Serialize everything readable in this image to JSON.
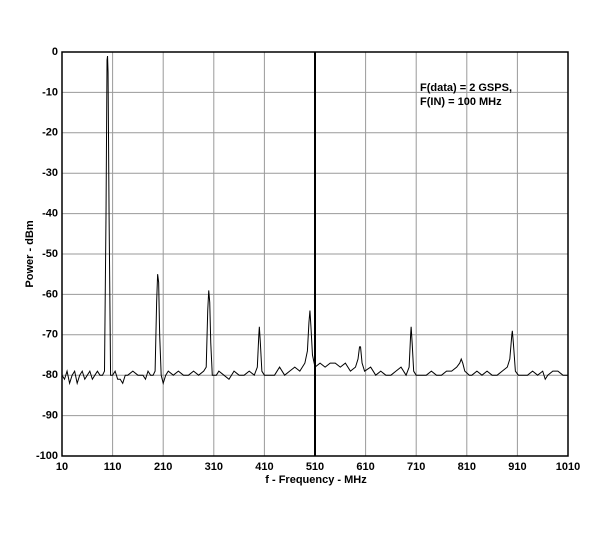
{
  "chart_data": {
    "type": "line",
    "xlabel": "f - Frequency - MHz",
    "ylabel": "Power - dBm",
    "annotations": [
      "F(data) = 2 GSPS,",
      "F(IN) = 100 MHz"
    ],
    "color": "#000000",
    "grid": true,
    "xlim": [
      10,
      1010
    ],
    "ylim": [
      -100,
      0
    ],
    "xticks": [
      10,
      110,
      210,
      310,
      410,
      510,
      610,
      710,
      810,
      910,
      1010
    ],
    "yticks": [
      0,
      -10,
      -20,
      -30,
      -40,
      -50,
      -60,
      -70,
      -80,
      -90,
      -100
    ],
    "x": [
      10,
      15,
      20,
      25,
      30,
      35,
      40,
      45,
      50,
      55,
      60,
      65,
      70,
      75,
      80,
      85,
      90,
      94,
      97,
      99,
      100,
      101,
      103,
      106,
      110,
      115,
      120,
      125,
      130,
      135,
      140,
      150,
      160,
      170,
      175,
      180,
      185,
      190,
      194,
      197,
      199,
      201,
      203,
      206,
      210,
      215,
      220,
      230,
      240,
      250,
      260,
      270,
      280,
      290,
      295,
      298,
      300,
      302,
      304,
      307,
      315,
      320,
      330,
      340,
      350,
      360,
      370,
      380,
      390,
      396,
      399,
      400,
      402,
      405,
      410,
      420,
      430,
      440,
      450,
      460,
      470,
      480,
      490,
      495,
      498,
      500,
      502,
      505,
      510,
      520,
      530,
      540,
      550,
      560,
      570,
      580,
      590,
      595,
      598,
      600,
      603,
      608,
      620,
      630,
      640,
      650,
      660,
      670,
      680,
      690,
      696,
      699,
      700,
      702,
      705,
      710,
      720,
      730,
      740,
      750,
      760,
      770,
      780,
      790,
      796,
      799,
      802,
      806,
      815,
      820,
      830,
      840,
      850,
      860,
      870,
      880,
      890,
      895,
      899,
      900,
      902,
      906,
      912,
      920,
      930,
      940,
      950,
      960,
      965,
      970,
      980,
      990,
      1000,
      1010
    ],
    "values": [
      -80,
      -81,
      -79,
      -82,
      -80,
      -79,
      -82,
      -80,
      -79,
      -81,
      -80,
      -79,
      -81,
      -80,
      -79,
      -80,
      -80,
      -79,
      -40,
      -2,
      -1,
      -5,
      -40,
      -80,
      -80,
      -79,
      -81,
      -81,
      -82,
      -80,
      -80,
      -79,
      -80,
      -80,
      -81,
      -79,
      -80,
      -80,
      -79,
      -62,
      -55,
      -57,
      -70,
      -80,
      -82,
      -80,
      -79,
      -80,
      -79,
      -80,
      -80,
      -79,
      -80,
      -79,
      -78,
      -64,
      -59,
      -62,
      -72,
      -80,
      -80,
      -79,
      -80,
      -81,
      -79,
      -80,
      -80,
      -79,
      -80,
      -78,
      -70,
      -68,
      -72,
      -79,
      -80,
      -80,
      -80,
      -78,
      -80,
      -79,
      -78,
      -79,
      -77,
      -74,
      -67,
      -64,
      -68,
      -75,
      -78,
      -77,
      -78,
      -77,
      -77,
      -78,
      -77,
      -79,
      -78,
      -76,
      -73,
      -73,
      -77,
      -79,
      -78,
      -80,
      -79,
      -80,
      -80,
      -79,
      -78,
      -80,
      -78,
      -70,
      -68,
      -72,
      -79,
      -80,
      -80,
      -80,
      -79,
      -80,
      -80,
      -79,
      -79,
      -78,
      -77,
      -76,
      -77,
      -79,
      -80,
      -80,
      -79,
      -80,
      -79,
      -80,
      -80,
      -79,
      -78,
      -76,
      -70,
      -69,
      -72,
      -79,
      -80,
      -80,
      -80,
      -79,
      -80,
      -79,
      -81,
      -80,
      -79,
      -79,
      -80,
      -80
    ]
  }
}
